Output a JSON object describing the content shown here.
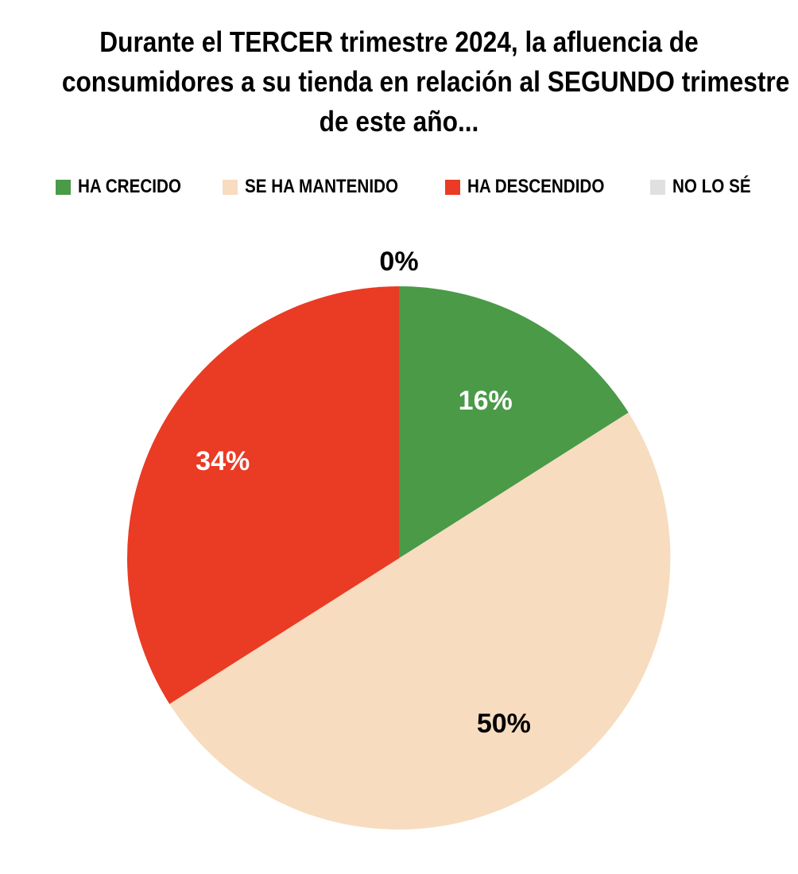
{
  "title_lines": [
    "Durante el TERCER trimestre 2024, la afluencia de",
    "consumidores a su tienda en relación al  SEGUNDO  trimestre",
    "de este año..."
  ],
  "legend_position": "top",
  "colors": {
    "ha_crecido": "#4a9a48",
    "se_ha_mantenido": "#f7dcbf",
    "ha_descendido": "#ea3b24",
    "no_lo_se": "#e0e0e0"
  },
  "chart_data": {
    "type": "pie",
    "title": "Durante el TERCER trimestre 2024, la afluencia de consumidores a su tienda en relación al  SEGUNDO  trimestre de este año...",
    "categories": [
      "HA CRECIDO",
      "SE HA MANTENIDO",
      "HA DESCENDIDO",
      "NO LO SÉ"
    ],
    "values": [
      16,
      50,
      34,
      0
    ],
    "data_labels": [
      "16%",
      "50%",
      "34%",
      "0%"
    ],
    "start": "12 o'clock",
    "direction": "clockwise",
    "legend": "top"
  }
}
